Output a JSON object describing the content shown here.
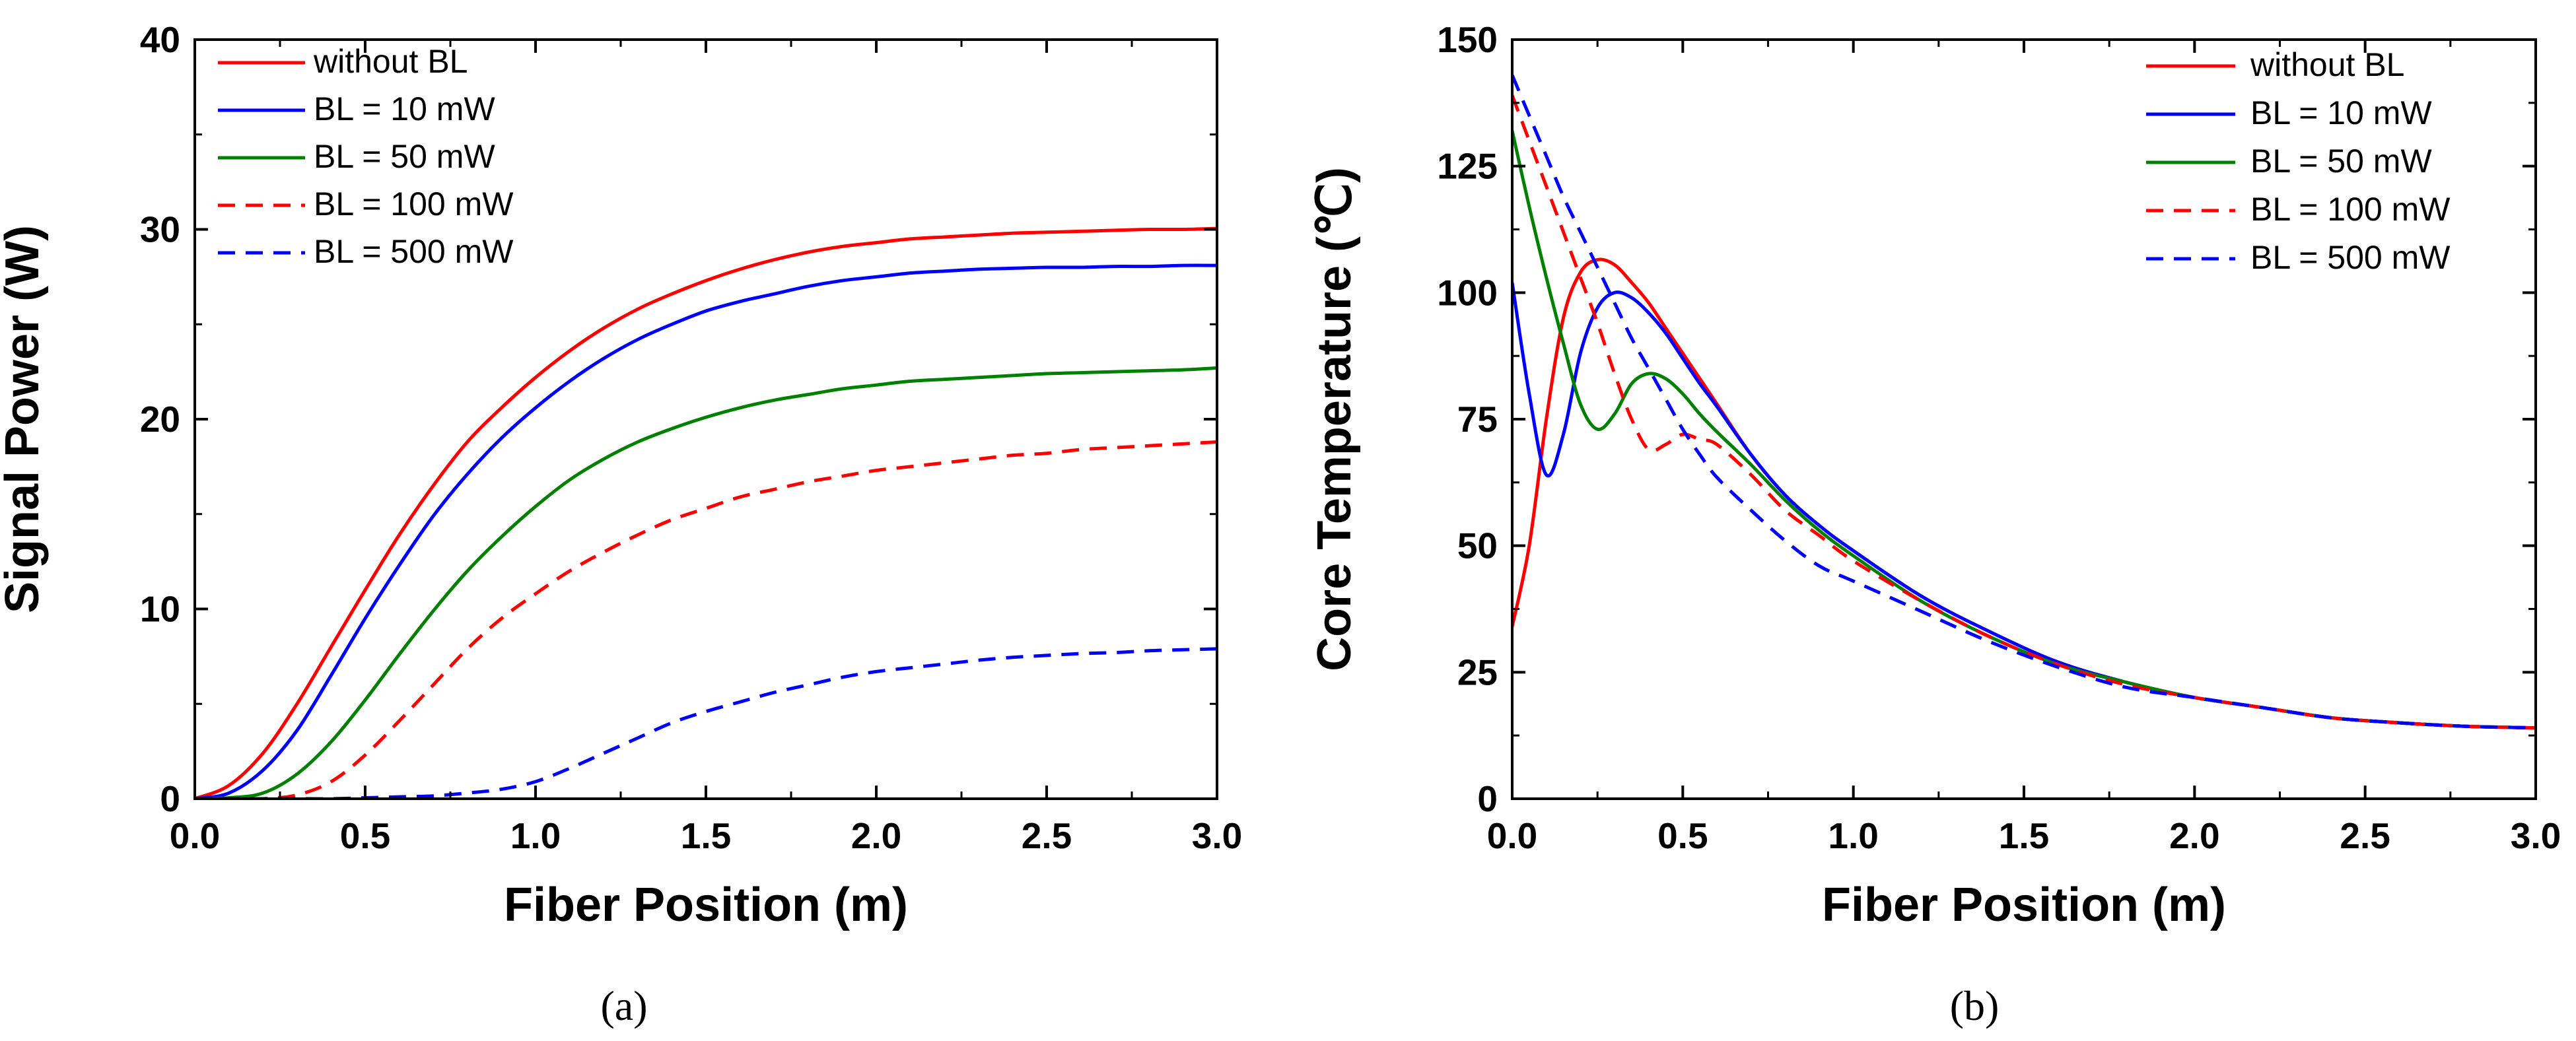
{
  "chart_data": [
    {
      "type": "line",
      "panel_label": "(a)",
      "xlabel": "Fiber Position (m)",
      "ylabel": "Signal Power (W)",
      "xlim": [
        0,
        3
      ],
      "ylim": [
        0,
        40
      ],
      "xticks": [
        "0.0",
        "0.5",
        "1.0",
        "1.5",
        "2.0",
        "2.5",
        "3.0"
      ],
      "yticks": [
        "0",
        "10",
        "20",
        "30",
        "40"
      ],
      "legend_position": "top-left",
      "x": [
        0,
        0.1,
        0.2,
        0.3,
        0.4,
        0.5,
        0.6,
        0.7,
        0.8,
        0.9,
        1.0,
        1.1,
        1.2,
        1.3,
        1.4,
        1.5,
        1.6,
        1.7,
        1.8,
        1.9,
        2.0,
        2.1,
        2.2,
        2.3,
        2.4,
        2.5,
        2.6,
        2.7,
        2.8,
        2.9,
        3.0
      ],
      "series": [
        {
          "name": "without BL",
          "color": "#ff0000",
          "dash": "solid",
          "values": [
            0,
            0.7,
            2.4,
            5.0,
            8.0,
            11.0,
            13.9,
            16.5,
            18.8,
            20.6,
            22.2,
            23.6,
            24.8,
            25.8,
            26.6,
            27.3,
            27.9,
            28.4,
            28.8,
            29.1,
            29.3,
            29.5,
            29.6,
            29.7,
            29.8,
            29.85,
            29.9,
            29.95,
            30.0,
            30.0,
            30.05
          ]
        },
        {
          "name": "BL = 10 mW",
          "color": "#0000ff",
          "dash": "solid",
          "values": [
            0,
            0.3,
            1.5,
            3.6,
            6.5,
            9.5,
            12.3,
            14.9,
            17.1,
            19.0,
            20.6,
            22.0,
            23.2,
            24.2,
            25.0,
            25.7,
            26.2,
            26.6,
            27.0,
            27.3,
            27.5,
            27.7,
            27.8,
            27.9,
            27.95,
            28.0,
            28.0,
            28.05,
            28.05,
            28.1,
            28.1
          ]
        },
        {
          "name": "BL = 50 mW",
          "color": "#008000",
          "dash": "solid",
          "values": [
            0,
            0.05,
            0.3,
            1.3,
            3.0,
            5.2,
            7.6,
            9.9,
            12.0,
            13.8,
            15.4,
            16.8,
            17.9,
            18.8,
            19.5,
            20.1,
            20.6,
            21.0,
            21.3,
            21.6,
            21.8,
            22.0,
            22.1,
            22.2,
            22.3,
            22.4,
            22.45,
            22.5,
            22.55,
            22.6,
            22.7
          ]
        },
        {
          "name": "BL = 100 mW",
          "color": "#ff0000",
          "dash": "dashed",
          "values": [
            0,
            0,
            0,
            0.2,
            0.9,
            2.3,
            4.1,
            6.0,
            7.9,
            9.5,
            10.8,
            12.0,
            13.0,
            13.9,
            14.7,
            15.3,
            15.9,
            16.3,
            16.7,
            17.0,
            17.3,
            17.5,
            17.7,
            17.9,
            18.1,
            18.2,
            18.4,
            18.5,
            18.6,
            18.7,
            18.8
          ]
        },
        {
          "name": "BL = 500 mW",
          "color": "#0000ff",
          "dash": "dashed",
          "values": [
            0,
            0,
            0,
            0,
            0,
            0.05,
            0.1,
            0.15,
            0.3,
            0.5,
            0.9,
            1.6,
            2.4,
            3.2,
            4.0,
            4.6,
            5.1,
            5.6,
            6.0,
            6.4,
            6.7,
            6.9,
            7.1,
            7.3,
            7.45,
            7.55,
            7.65,
            7.7,
            7.8,
            7.85,
            7.9
          ]
        }
      ]
    },
    {
      "type": "line",
      "panel_label": "(b)",
      "xlabel": "Fiber Position (m)",
      "ylabel": "Core Temperature (℃)",
      "xlim": [
        0,
        3
      ],
      "ylim": [
        0,
        150
      ],
      "xticks": [
        "0.0",
        "0.5",
        "1.0",
        "1.5",
        "2.0",
        "2.5",
        "3.0"
      ],
      "yticks": [
        "0",
        "25",
        "50",
        "75",
        "100",
        "125",
        "150"
      ],
      "legend_position": "top-right",
      "x": [
        0,
        0.05,
        0.1,
        0.15,
        0.2,
        0.25,
        0.3,
        0.35,
        0.4,
        0.45,
        0.5,
        0.55,
        0.6,
        0.7,
        0.8,
        0.9,
        1.0,
        1.2,
        1.4,
        1.6,
        1.8,
        2.0,
        2.2,
        2.4,
        2.6,
        2.8,
        3.0
      ],
      "series": [
        {
          "name": "without BL",
          "color": "#ff0000",
          "dash": "solid",
          "values": [
            34,
            50,
            75,
            95,
            104,
            106.5,
            105.5,
            102,
            98,
            93,
            88,
            83,
            78,
            68,
            60,
            54,
            49,
            40,
            33,
            27,
            23,
            20,
            18,
            16,
            15,
            14.3,
            14
          ]
        },
        {
          "name": "BL = 10 mW",
          "color": "#0000ff",
          "dash": "solid",
          "values": [
            102,
            80,
            64,
            72,
            88,
            97,
            100,
            99,
            96,
            92,
            87,
            82,
            77.5,
            68,
            60,
            54,
            49,
            40,
            33,
            27,
            23,
            20,
            18,
            16,
            15,
            14.3,
            14
          ]
        },
        {
          "name": "BL = 50 mW",
          "color": "#008000",
          "dash": "solid",
          "values": [
            132,
            117,
            103,
            90,
            78,
            73,
            76,
            82,
            84,
            83,
            80,
            76,
            72.5,
            66,
            59,
            53,
            48,
            39,
            32,
            26.5,
            23,
            20,
            18,
            16,
            15,
            14.3,
            14
          ]
        },
        {
          "name": "BL = 100 mW",
          "color": "#ff0000",
          "dash": "dashed",
          "values": [
            139,
            130,
            121,
            112,
            103,
            94,
            84,
            75,
            69,
            70,
            72,
            71,
            70,
            64,
            57,
            52,
            47,
            39,
            32,
            26.5,
            22.5,
            20,
            18,
            16,
            15,
            14.3,
            14
          ]
        },
        {
          "name": "BL = 500 mW",
          "color": "#0000ff",
          "dash": "dashed",
          "values": [
            143,
            135,
            127,
            119,
            112,
            105,
            98,
            91,
            85,
            79,
            73,
            68,
            63.5,
            57,
            51,
            46,
            43,
            37,
            31,
            26,
            22,
            20,
            18,
            16,
            15,
            14.3,
            14
          ]
        }
      ]
    }
  ]
}
